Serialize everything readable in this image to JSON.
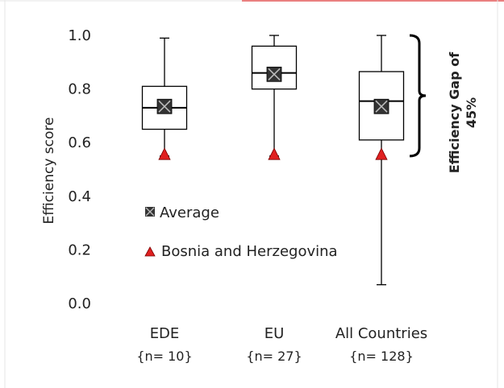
{
  "chart_data": {
    "type": "box",
    "ylabel": "Efficiency score",
    "ylim": [
      0.0,
      1.0
    ],
    "y_ticks": [
      "0.0",
      "0.2",
      "0.4",
      "0.6",
      "0.8",
      "1.0"
    ],
    "categories": [
      {
        "label": "EDE",
        "n_label": "{n= 10}"
      },
      {
        "label": "EU",
        "n_label": "{n= 27}"
      },
      {
        "label": "All Countries",
        "n_label": "{n= 128}"
      }
    ],
    "boxes": [
      {
        "whisker_low": 0.55,
        "q1": 0.65,
        "median": 0.73,
        "q3": 0.81,
        "whisker_high": 0.99,
        "mean": 0.735,
        "bosnia": 0.555
      },
      {
        "whisker_low": 0.55,
        "q1": 0.8,
        "median": 0.86,
        "q3": 0.96,
        "whisker_high": 1.0,
        "mean": 0.855,
        "bosnia": 0.555
      },
      {
        "whisker_low": 0.07,
        "q1": 0.61,
        "median": 0.755,
        "q3": 0.865,
        "whisker_high": 1.0,
        "mean": 0.735,
        "bosnia": 0.555
      }
    ],
    "legend": {
      "average_label": "Average",
      "bosnia_label": "Bosnia and Herzegovina"
    },
    "annotation": {
      "line1": "Efficiency Gap  of",
      "line2": "45%",
      "bracket_from": 0.55,
      "bracket_to": 1.0
    },
    "colors": {
      "box_stroke": "#000000",
      "mean_marker": "#333333",
      "bosnia_marker": "#e02020",
      "border_accent": "#d40000"
    }
  }
}
